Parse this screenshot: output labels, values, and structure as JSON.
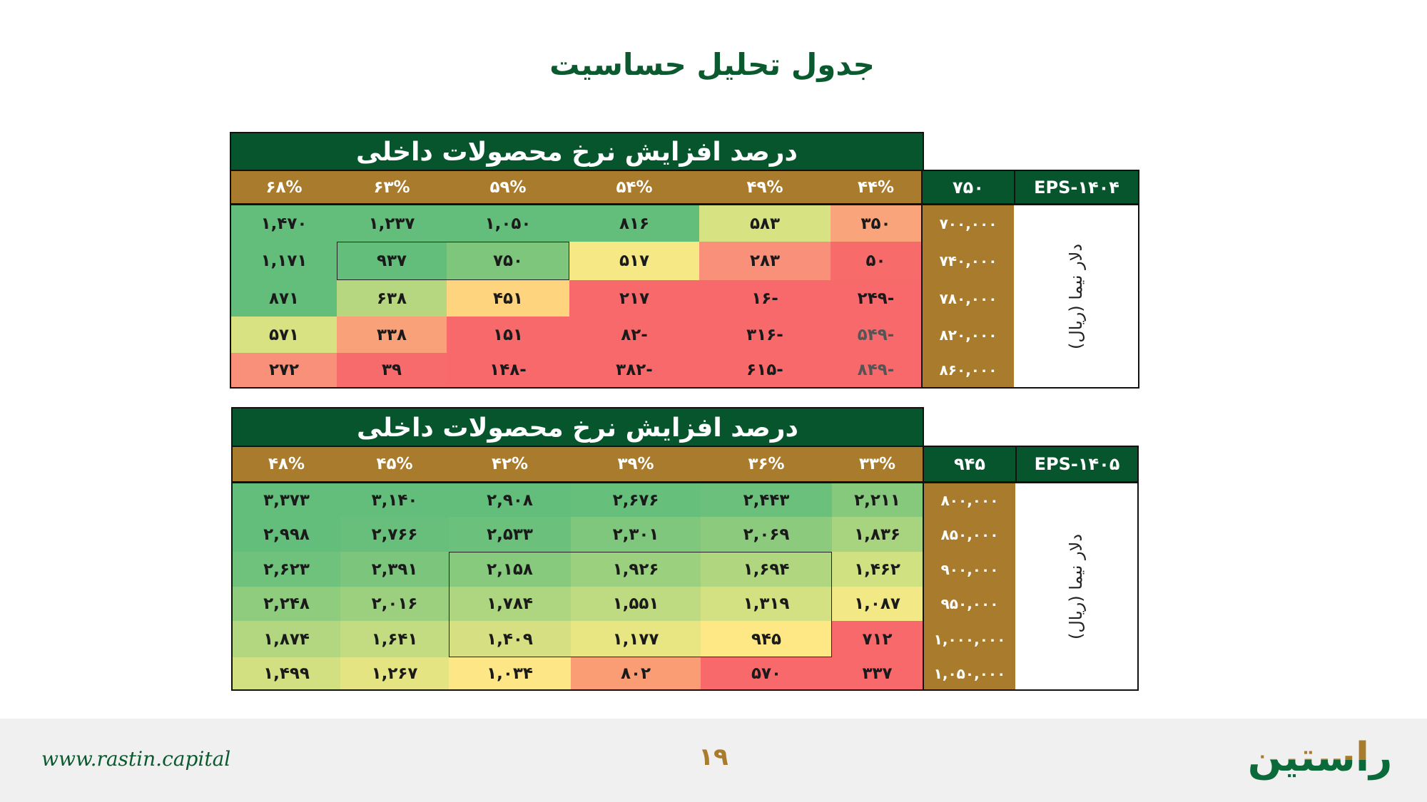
{
  "title": "جدول تحلیل حساسیت",
  "colors": {
    "dark_green": "#06552d",
    "brown": "#a97b2c",
    "green": "#63be7b",
    "yellow": "#f7e886",
    "red": "#f8696b"
  },
  "tables": [
    {
      "banner": "درصد افزایش نرخ محصولات داخلی",
      "eps_label": "EPS-۱۴۰۴",
      "base_value": "۷۵۰",
      "side_label": "دلار نیما (ریال)",
      "columns": [
        "۴۴%",
        "۴۹%",
        "۵۴%",
        "۵۹%",
        "۶۳%",
        "۶۸%"
      ],
      "rows": [
        {
          "label": "۷۰۰,۰۰۰",
          "values": [
            "۳۵۰",
            "۵۸۳",
            "۸۱۶",
            "۱,۰۵۰",
            "۱,۲۳۷",
            "۱,۴۷۰"
          ],
          "colors": [
            "#f9a47a",
            "#d7e283",
            "#63be7b",
            "#63be7b",
            "#63be7b",
            "#63be7b"
          ]
        },
        {
          "label": "۷۴۰,۰۰۰",
          "values": [
            "۵۰",
            "۲۸۳",
            "۵۱۷",
            "۷۵۰",
            "۹۳۷",
            "۱,۱۷۱"
          ],
          "colors": [
            "#f86b6b",
            "#f8907a",
            "#f7e886",
            "#7dc67c",
            "#63be7b",
            "#63be7b"
          ]
        },
        {
          "label": "۷۸۰,۰۰۰",
          "values": [
            "-۲۴۹",
            "-۱۶",
            "۲۱۷",
            "۴۵۱",
            "۶۳۸",
            "۸۷۱"
          ],
          "colors": [
            "#f8696b",
            "#f8696b",
            "#f8696b",
            "#fed47f",
            "#b6d77f",
            "#63be7b"
          ]
        },
        {
          "label": "۸۲۰,۰۰۰",
          "values": [
            "-۵۴۹",
            "-۳۱۶",
            "-۸۲",
            "۱۵۱",
            "۳۳۸",
            "۵۷۱"
          ],
          "colors": [
            "#f8696b",
            "#f8696b",
            "#f8696b",
            "#f8696b",
            "#f9a27a",
            "#d8e283"
          ]
        },
        {
          "label": "۸۶۰,۰۰۰",
          "values": [
            "-۸۴۹",
            "-۶۱۵",
            "-۳۸۲",
            "-۱۴۸",
            "۳۹",
            "۲۷۲"
          ],
          "colors": [
            "#f8696b",
            "#f8696b",
            "#f8696b",
            "#f8696b",
            "#f86b6d",
            "#f9917a"
          ]
        }
      ]
    },
    {
      "banner": "درصد افزایش نرخ محصولات داخلی",
      "eps_label": "EPS-۱۴۰۵",
      "base_value": "۹۴۵",
      "side_label": "دلار نیما (ریال)",
      "columns": [
        "۳۳%",
        "۳۶%",
        "۳۹%",
        "۴۲%",
        "۴۵%",
        "۴۸%"
      ],
      "rows": [
        {
          "label": "۸۰۰,۰۰۰",
          "values": [
            "۲,۲۱۱",
            "۲,۴۴۳",
            "۲,۶۷۶",
            "۲,۹۰۸",
            "۳,۱۴۰",
            "۳,۳۷۳"
          ],
          "colors": [
            "#86c97d",
            "#6bc07b",
            "#66bf7b",
            "#63be7b",
            "#63be7b",
            "#63be7b"
          ]
        },
        {
          "label": "۸۵۰,۰۰۰",
          "values": [
            "۱,۸۳۶",
            "۲,۰۶۹",
            "۲,۳۰۱",
            "۲,۵۳۳",
            "۲,۷۶۶",
            "۲,۹۹۸"
          ],
          "colors": [
            "#a9d47f",
            "#8ccb7e",
            "#7ec77d",
            "#6bc07b",
            "#67bf7b",
            "#63be7b"
          ]
        },
        {
          "label": "۹۰۰,۰۰۰",
          "values": [
            "۱,۴۶۲",
            "۱,۶۹۴",
            "۱,۹۲۶",
            "۲,۱۵۸",
            "۲,۳۹۱",
            "۲,۶۲۳"
          ],
          "colors": [
            "#d0e182",
            "#b0d680",
            "#9bd07e",
            "#88ca7d",
            "#7bc67c",
            "#6ec27c"
          ]
        },
        {
          "label": "۹۵۰,۰۰۰",
          "values": [
            "۱,۰۸۷",
            "۱,۳۱۹",
            "۱,۵۵۱",
            "۱,۷۸۴",
            "۲,۰۱۶",
            "۲,۲۴۸"
          ],
          "colors": [
            "#f2e885",
            "#d3e182",
            "#bfdb81",
            "#aed57f",
            "#9dd07e",
            "#90cc7d"
          ]
        },
        {
          "label": "۱,۰۰۰,۰۰۰",
          "values": [
            "۷۱۲",
            "۹۴۵",
            "۱,۱۷۷",
            "۱,۴۰۹",
            "۱,۶۴۱",
            "۱,۸۷۴"
          ],
          "colors": [
            "#f8696b",
            "#fde885",
            "#e8e583",
            "#d6e082",
            "#c3dc81",
            "#b3d780"
          ]
        },
        {
          "label": "۱,۰۵۰,۰۰۰",
          "values": [
            "۳۳۷",
            "۵۷۰",
            "۸۰۲",
            "۱,۰۳۴",
            "۱,۲۶۷",
            "۱,۴۹۹"
          ],
          "colors": [
            "#f8696b",
            "#f8696b",
            "#fa9d75",
            "#fde685",
            "#e5e483",
            "#d3e082"
          ]
        }
      ]
    }
  ],
  "footer": {
    "url": "www.rastin.capital",
    "page_number": "۱۹",
    "logo_text": "راستین"
  }
}
